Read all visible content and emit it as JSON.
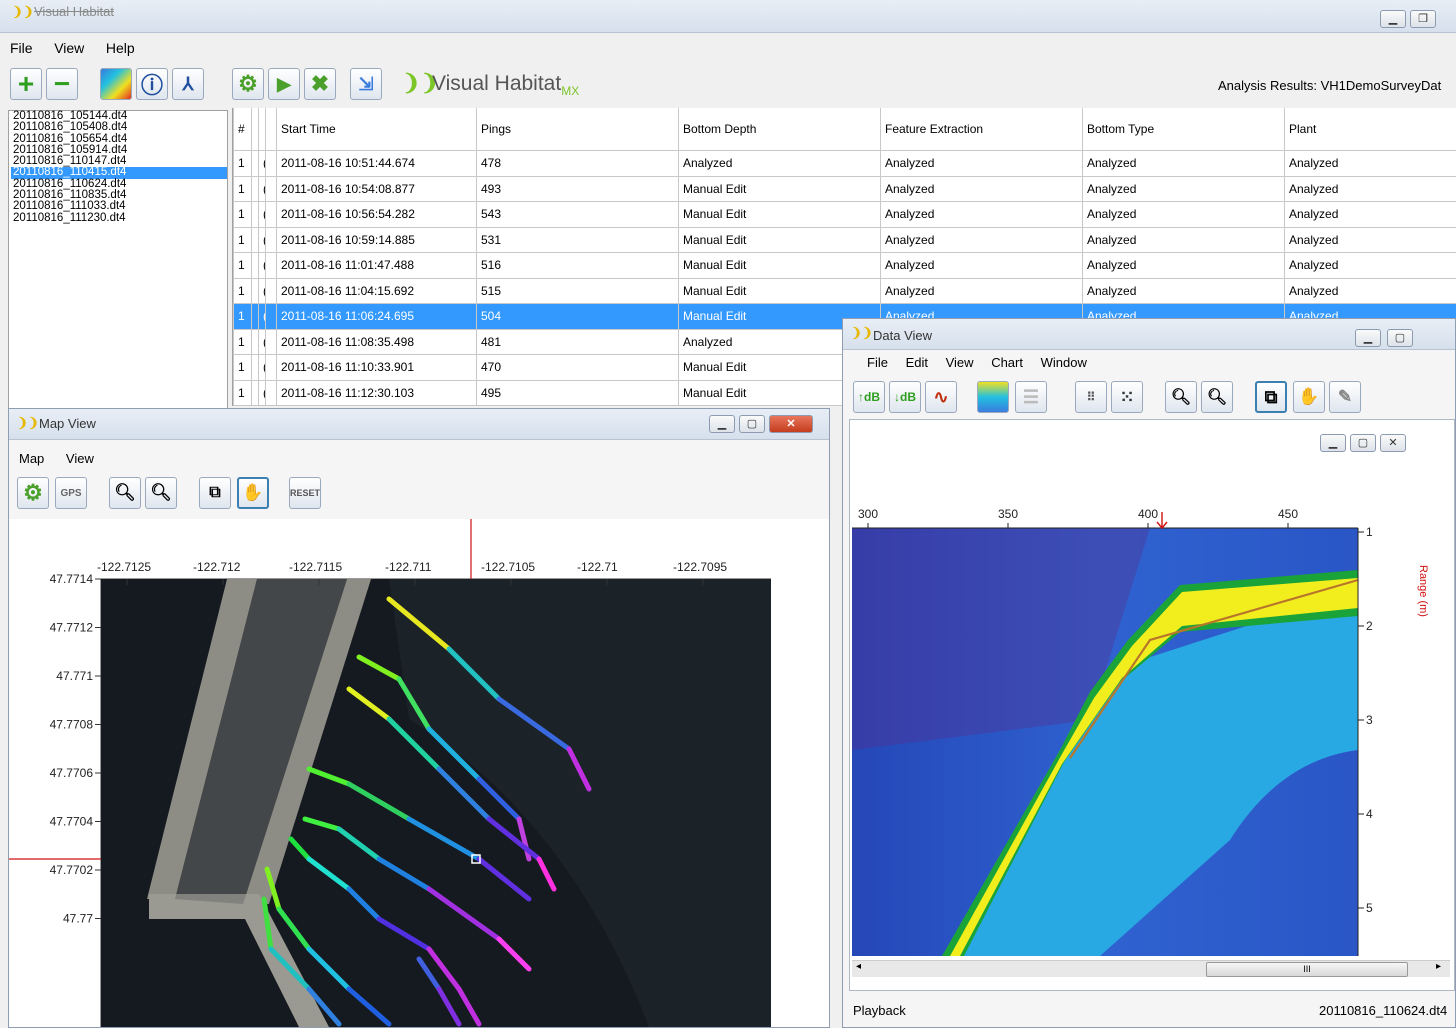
{
  "main_window": {
    "title": "Visual Habitat",
    "menu": [
      "File",
      "View",
      "Help"
    ],
    "logo_text": "Visual Habitat",
    "logo_sub": "MX",
    "analysis_results_label": "Analysis Results:",
    "analysis_results_value": "VH1DemoSurveyDat",
    "toolbar_icons": [
      "add-icon",
      "remove-icon",
      "color-map-icon",
      "info-icon",
      "compass-icon",
      "settings-icon",
      "play-icon",
      "stop-icon",
      "export-icon"
    ]
  },
  "file_list": {
    "selected_index": 5,
    "items": [
      "20110816_105144.dt4",
      "20110816_105408.dt4",
      "20110816_105654.dt4",
      "20110816_105914.dt4",
      "20110816_110147.dt4",
      "20110816_110415.dt4",
      "20110816_110624.dt4",
      "20110816_110835.dt4",
      "20110816_111033.dt4",
      "20110816_111230.dt4"
    ]
  },
  "table": {
    "headers": [
      "#",
      "",
      "",
      "",
      "Start Time",
      "Pings",
      "Bottom Depth",
      "Feature Extraction",
      "Bottom Type",
      "Plant"
    ],
    "selected_index": 6,
    "rows": [
      [
        "1",
        "",
        "(",
        "",
        "2011-08-16 10:51:44.674",
        "478",
        "Analyzed",
        "Analyzed",
        "Analyzed",
        "Analyzed"
      ],
      [
        "1",
        "",
        "(",
        "",
        "2011-08-16 10:54:08.877",
        "493",
        "Manual Edit",
        "Analyzed",
        "Analyzed",
        "Analyzed"
      ],
      [
        "1",
        "",
        "(",
        "",
        "2011-08-16 10:56:54.282",
        "543",
        "Manual Edit",
        "Analyzed",
        "Analyzed",
        "Analyzed"
      ],
      [
        "1",
        "",
        "(",
        "",
        "2011-08-16 10:59:14.885",
        "531",
        "Manual Edit",
        "Analyzed",
        "Analyzed",
        "Analyzed"
      ],
      [
        "1",
        "",
        "(",
        "",
        "2011-08-16 11:01:47.488",
        "516",
        "Manual Edit",
        "Analyzed",
        "Analyzed",
        "Analyzed"
      ],
      [
        "1",
        "",
        "(",
        "",
        "2011-08-16 11:04:15.692",
        "515",
        "Manual Edit",
        "Analyzed",
        "Analyzed",
        "Analyzed"
      ],
      [
        "1",
        "",
        "(",
        "",
        "2011-08-16 11:06:24.695",
        "504",
        "Manual Edit",
        "Analyzed",
        "Analyzed",
        "Analyzed"
      ],
      [
        "1",
        "",
        "(",
        "",
        "2011-08-16 11:08:35.498",
        "481",
        "Analyzed",
        "",
        "",
        ""
      ],
      [
        "1",
        "",
        "(",
        "",
        "2011-08-16 11:10:33.901",
        "470",
        "Manual Edit",
        "",
        "",
        ""
      ],
      [
        "1",
        "",
        "(",
        "",
        "2011-08-16 11:12:30.103",
        "495",
        "Manual Edit",
        "",
        "",
        ""
      ]
    ]
  },
  "map_view": {
    "title": "Map View",
    "menu": [
      "Map",
      "View"
    ],
    "gps_label": "GPS",
    "reset_label": "RESET",
    "x_ticks": [
      "-122.7125",
      "-122.712",
      "-122.7115",
      "-122.711",
      "-122.7105",
      "-122.71",
      "-122.7095"
    ],
    "y_ticks": [
      "47.7714",
      "47.7712",
      "47.771",
      "47.7708",
      "47.7706",
      "47.7704",
      "47.7702",
      "47.77"
    ],
    "colors": {
      "background": "#141a1f",
      "dock": "#9a9a92"
    }
  },
  "data_view": {
    "title": "Data View",
    "menu": [
      "File",
      "Edit",
      "View",
      "Chart",
      "Window"
    ],
    "x_ticks": [
      "300",
      "350",
      "400",
      "450"
    ],
    "y_ticks": [
      "1",
      "2",
      "3",
      "4",
      "5"
    ],
    "y_axis_label": "Range (m)",
    "scroll_marker": "III",
    "status_left": "Playback",
    "status_right": "20110816_110624.dt4",
    "colors": {
      "deep": "#1a3fb5",
      "water": "#2f6ad6",
      "mid": "#22b8e8",
      "bottom": "#f2ee1e",
      "edge": "#19a338",
      "line": "#b8762a"
    }
  }
}
